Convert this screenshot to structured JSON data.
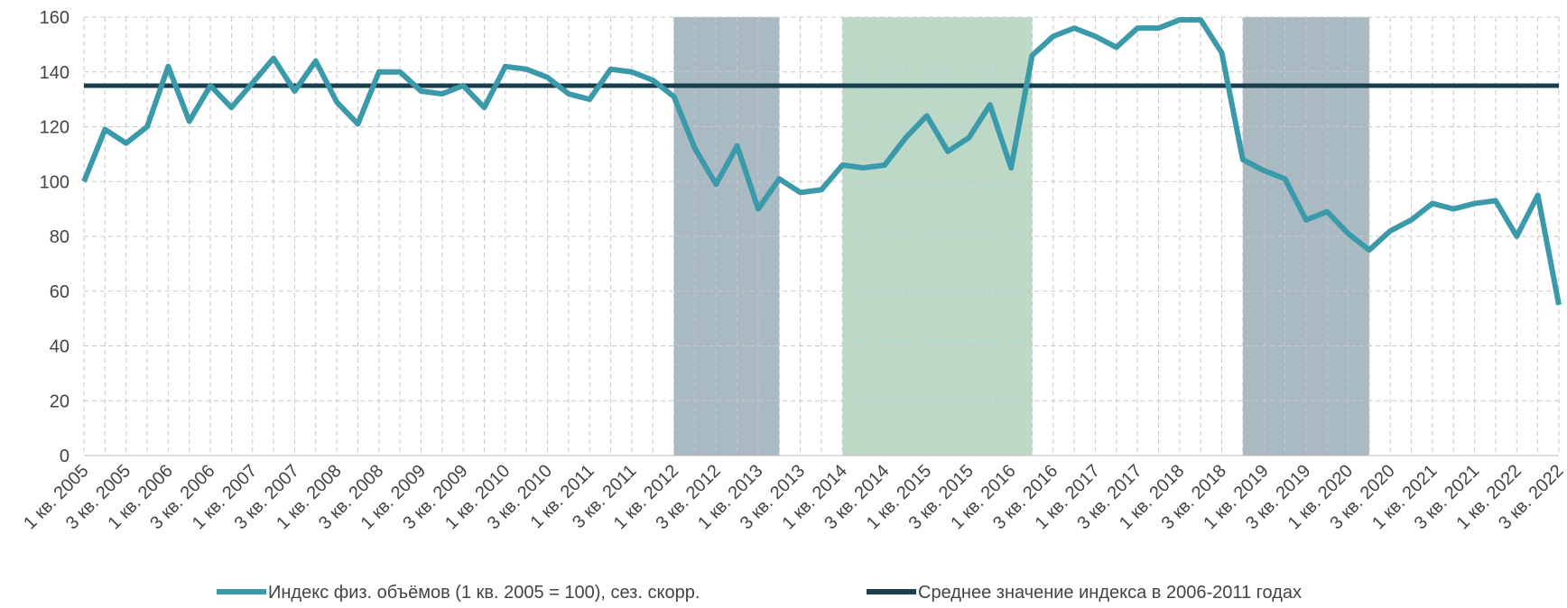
{
  "chart_data": {
    "type": "line",
    "categories": [
      "1 кв. 2005",
      null,
      "3 кв. 2005",
      null,
      "1 кв. 2006",
      null,
      "3 кв. 2006",
      null,
      "1 кв. 2007",
      null,
      "3 кв. 2007",
      null,
      "1 кв. 2008",
      null,
      "3 кв. 2008",
      null,
      "1 кв. 2009",
      null,
      "3 кв. 2009",
      null,
      "1 кв. 2010",
      null,
      "3 кв. 2010",
      null,
      "1 кв. 2011",
      null,
      "3 кв. 2011",
      null,
      "1 кв. 2012",
      null,
      "3 кв. 2012",
      null,
      "1 кв. 2013",
      null,
      "3 кв. 2013",
      null,
      "1 кв. 2014",
      null,
      "3 кв. 2014",
      null,
      "1 кв. 2015",
      null,
      "3 кв. 2015",
      null,
      "1 кв. 2016",
      null,
      "3 кв. 2016",
      null,
      "1 кв. 2017",
      null,
      "3 кв. 2017",
      null,
      "1 кв. 2018",
      null,
      "3 кв. 2018",
      null,
      "1 кв. 2019",
      null,
      "3 кв. 2019",
      null,
      "1 кв. 2020",
      null,
      "3 кв. 2020",
      null,
      "1 кв. 2021",
      null,
      "3 кв. 2021",
      null,
      "1 кв. 2022",
      null,
      "3 кв. 2022"
    ],
    "series": [
      {
        "name": "Индекс физ. объёмов (1 кв. 2005 = 100), сез. скорр.",
        "color": "#3a9aaa",
        "values": [
          100,
          119,
          114,
          120,
          142,
          122,
          135,
          127,
          136,
          145,
          133,
          144,
          129,
          121,
          140,
          140,
          133,
          132,
          135,
          127,
          142,
          141,
          138,
          132,
          130,
          141,
          140,
          137,
          131,
          112,
          99,
          113,
          90,
          101,
          96,
          97,
          106,
          105,
          106,
          116,
          124,
          111,
          116,
          128,
          105,
          146,
          153,
          156,
          153,
          149,
          156,
          156,
          159,
          159,
          147,
          108,
          104,
          101,
          86,
          89,
          81,
          75,
          82,
          86,
          92,
          90,
          92,
          93,
          80,
          95,
          55
        ]
      }
    ],
    "hline": {
      "name": "Среднее значение индекса в 2006-2011 годах",
      "color": "#173f4f",
      "value": 135
    },
    "shaded_regions": [
      {
        "from": 28,
        "to": 33,
        "color": "#a9bac2"
      },
      {
        "from": 36,
        "to": 45,
        "color": "#bcd9c8"
      },
      {
        "from": 55,
        "to": 61,
        "color": "#a9bac2"
      }
    ],
    "ylim": [
      0,
      160
    ],
    "yticks": [
      0,
      20,
      40,
      60,
      80,
      100,
      120,
      140,
      160
    ],
    "grid": true
  }
}
